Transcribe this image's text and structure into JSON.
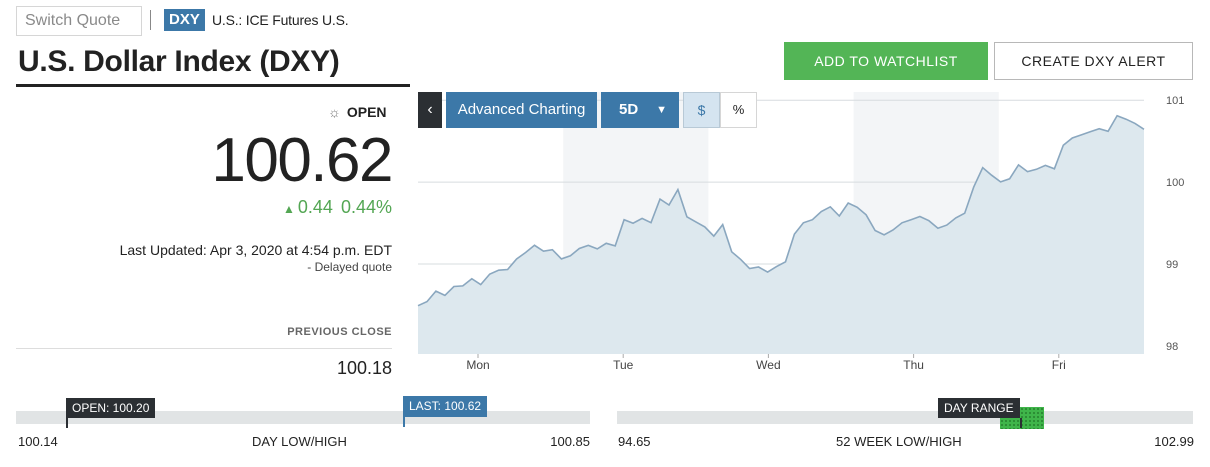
{
  "header": {
    "switch_quote_placeholder": "Switch Quote",
    "ticker": "DXY",
    "exchange": "U.S.: ICE Futures U.S."
  },
  "title": "U.S. Dollar Index (DXY)",
  "actions": {
    "watchlist": "ADD TO WATCHLIST",
    "alert": "CREATE DXY ALERT"
  },
  "quote": {
    "status": "OPEN",
    "price": "100.62",
    "change": "0.44",
    "change_pct": "0.44%",
    "last_updated": "Last Updated: Apr 3, 2020 at 4:54 p.m. EDT",
    "delayed": "- Delayed quote",
    "previous_close_label": "PREVIOUS CLOSE",
    "previous_close": "100.18"
  },
  "chart_toolbar": {
    "back_icon": "chevron-left-icon",
    "advanced": "Advanced Charting",
    "range": "5D",
    "dollar": "$",
    "percent": "%"
  },
  "colors": {
    "accent_blue": "#3c78a8",
    "up_green": "#53a653",
    "watchlist_green": "#53b556",
    "line": "#8aa7bf",
    "area": "#dde8ee"
  },
  "chart_data": {
    "type": "area",
    "x_labels": [
      "Mon",
      "Tue",
      "Wed",
      "Thu",
      "Fri"
    ],
    "y_ticks": [
      98,
      99,
      100,
      101
    ],
    "ylim": [
      97.9,
      101.1
    ],
    "grid": true,
    "values": [
      98.55,
      98.48,
      98.62,
      98.58,
      98.7,
      98.72,
      98.82,
      98.76,
      98.9,
      98.96,
      98.98,
      99.12,
      99.08,
      99.18,
      99.12,
      99.15,
      99.05,
      99.1,
      99.2,
      99.25,
      99.22,
      99.3,
      99.28,
      99.48,
      99.45,
      99.52,
      99.48,
      99.78,
      99.72,
      99.92,
      99.6,
      99.55,
      99.5,
      99.4,
      99.42,
      99.1,
      99.02,
      98.92,
      98.95,
      98.9,
      98.98,
      99.05,
      99.4,
      99.55,
      99.6,
      99.58,
      99.65,
      99.55,
      99.72,
      99.68,
      99.6,
      99.42,
      99.38,
      99.45,
      99.55,
      99.6,
      99.52,
      99.48,
      99.4,
      99.45,
      99.55,
      99.62,
      99.95,
      100.2,
      100.12,
      100.05,
      100.1,
      100.15,
      100.08,
      100.12,
      100.18,
      100.15,
      100.45,
      100.55,
      100.6,
      100.65,
      100.7,
      100.68,
      100.75,
      100.72,
      100.68,
      100.62
    ]
  },
  "ranges": {
    "day": {
      "open_tag": "OPEN: 100.20",
      "last_tag": "LAST: 100.62",
      "low": "100.14",
      "high": "100.85",
      "caption": "DAY LOW/HIGH",
      "open_frac": 0.085,
      "last_frac": 0.676
    },
    "week52": {
      "tag": "DAY RANGE",
      "low": "94.65",
      "high": "102.99",
      "caption": "52 WEEK LOW/HIGH",
      "day_range_frac": [
        0.66,
        0.745
      ]
    }
  }
}
